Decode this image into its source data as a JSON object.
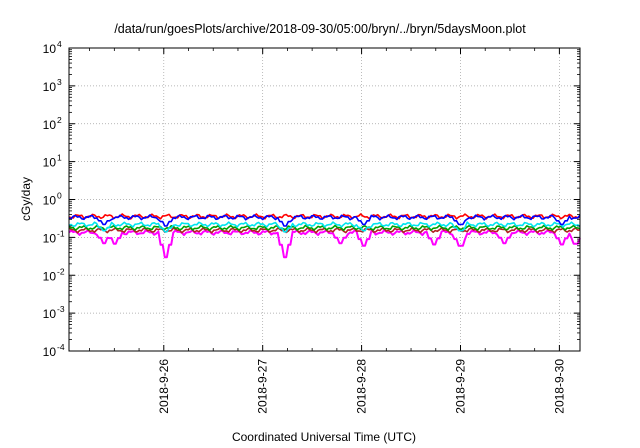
{
  "chart_data": {
    "type": "line",
    "title": "/data/run/goesPlots/archive/2018-09-30/05:00/bryn/../bryn/5daysMoon.plot",
    "xlabel": "Coordinated Universal Time (UTC)",
    "ylabel": "cGy/day",
    "yscale": "log",
    "ylim": [
      0.0001,
      10000
    ],
    "y_ticks": [
      {
        "base": "10",
        "exp": "-4",
        "value": 0.0001
      },
      {
        "base": "10",
        "exp": "-3",
        "value": 0.001
      },
      {
        "base": "10",
        "exp": "-2",
        "value": 0.01
      },
      {
        "base": "10",
        "exp": "-1",
        "value": 0.1
      },
      {
        "base": "10",
        "exp": "0",
        "value": 1
      },
      {
        "base": "10",
        "exp": "1",
        "value": 10
      },
      {
        "base": "10",
        "exp": "2",
        "value": 100
      },
      {
        "base": "10",
        "exp": "3",
        "value": 1000
      },
      {
        "base": "10",
        "exp": "4",
        "value": 10000
      }
    ],
    "xlim": [
      "2018-09-25T01:00",
      "2018-09-30T05:00"
    ],
    "x_ticks": [
      {
        "label": "2018-9-26",
        "value": "2018-09-26T00:00"
      },
      {
        "label": "2018-9-27",
        "value": "2018-09-27T00:00"
      },
      {
        "label": "2018-9-28",
        "value": "2018-09-28T00:00"
      },
      {
        "label": "2018-9-29",
        "value": "2018-09-29T00:00"
      },
      {
        "label": "2018-9-30",
        "value": "2018-09-30T00:00"
      }
    ],
    "grid": true,
    "legend": "none",
    "series": [
      {
        "color": "#ff00ff",
        "base": 0.135,
        "dips": [
          {
            "t": "2018-09-25T09:30",
            "v": 0.07
          },
          {
            "t": "2018-09-25T12:00",
            "v": 0.068
          },
          {
            "t": "2018-09-26T00:20",
            "v": 0.03
          },
          {
            "t": "2018-09-27T05:30",
            "v": 0.03
          },
          {
            "t": "2018-09-27T19:00",
            "v": 0.07
          },
          {
            "t": "2018-09-28T00:30",
            "v": 0.06
          },
          {
            "t": "2018-09-28T17:30",
            "v": 0.065
          },
          {
            "t": "2018-09-29T00:00",
            "v": 0.06
          },
          {
            "t": "2018-09-29T10:30",
            "v": 0.07
          },
          {
            "t": "2018-09-30T00:30",
            "v": 0.065
          },
          {
            "t": "2018-09-30T04:00",
            "v": 0.068
          }
        ]
      },
      {
        "color": "#b22222",
        "base": 0.155,
        "dips": []
      },
      {
        "color": "#00a000",
        "base": 0.18,
        "dips": []
      },
      {
        "color": "#00e5ee",
        "base": 0.22,
        "dips": [
          {
            "t": "2018-09-25T09:30",
            "v": 0.15
          },
          {
            "t": "2018-09-26T00:20",
            "v": 0.14
          },
          {
            "t": "2018-09-27T05:30",
            "v": 0.14
          },
          {
            "t": "2018-09-28T00:30",
            "v": 0.15
          },
          {
            "t": "2018-09-29T00:00",
            "v": 0.15
          }
        ]
      },
      {
        "color": "#ff0000",
        "base": 0.36,
        "dips": []
      },
      {
        "color": "#0000ff",
        "base": 0.34,
        "dips": [
          {
            "t": "2018-09-25T09:30",
            "v": 0.22
          },
          {
            "t": "2018-09-26T00:20",
            "v": 0.2
          },
          {
            "t": "2018-09-27T05:30",
            "v": 0.2
          },
          {
            "t": "2018-09-28T00:30",
            "v": 0.22
          },
          {
            "t": "2018-09-29T00:00",
            "v": 0.22
          },
          {
            "t": "2018-09-30T00:30",
            "v": 0.22
          }
        ]
      }
    ]
  }
}
